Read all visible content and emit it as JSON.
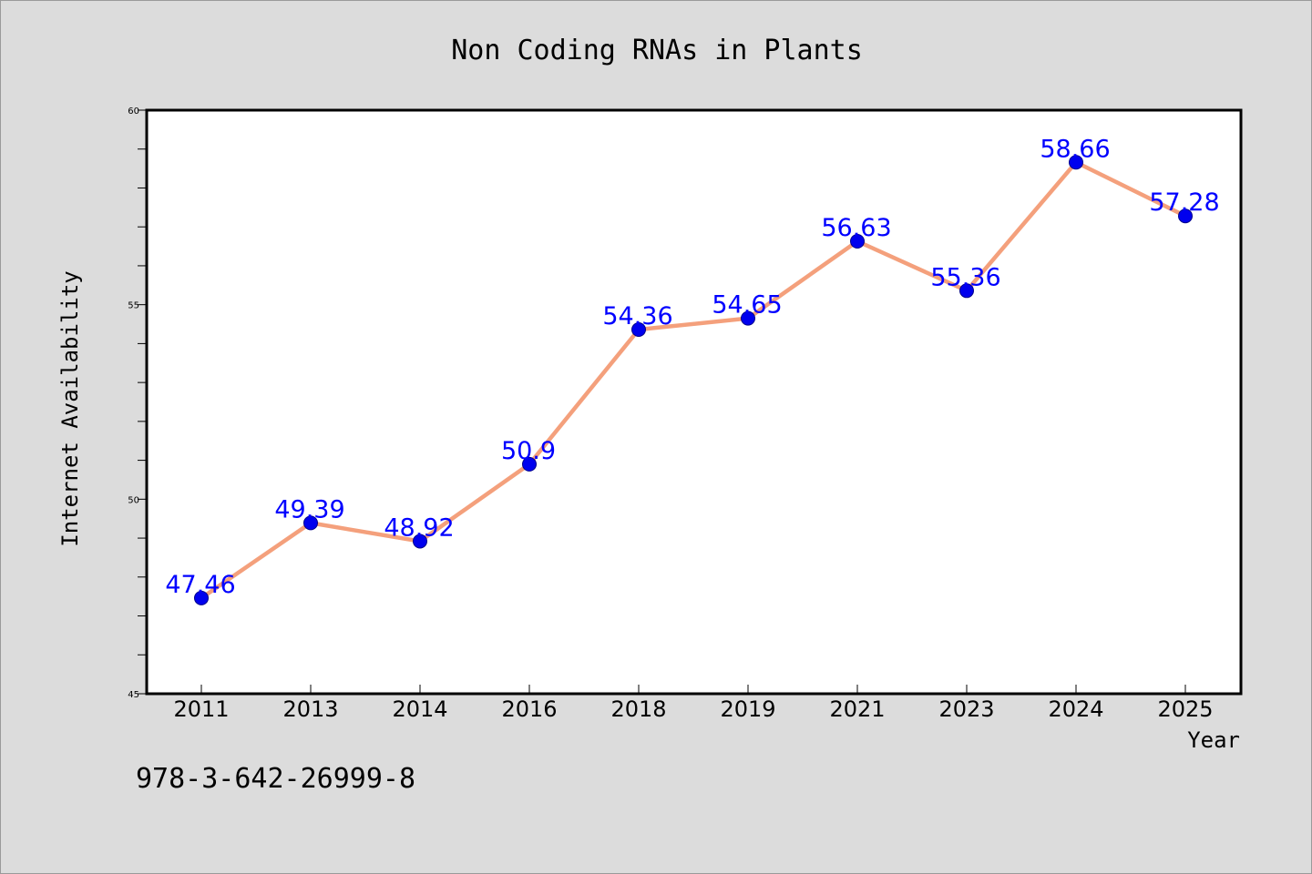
{
  "chart_data": {
    "type": "line",
    "title": "Non Coding RNAs in Plants",
    "xlabel": "Year",
    "ylabel": "Internet Availability",
    "categories": [
      "2011",
      "2013",
      "2014",
      "2016",
      "2018",
      "2019",
      "2021",
      "2023",
      "2024",
      "2025"
    ],
    "values": [
      47.46,
      49.39,
      48.92,
      50.9,
      54.36,
      54.65,
      56.63,
      55.36,
      58.66,
      57.28
    ],
    "data_labels": [
      "47.46",
      "49.39",
      "48.92",
      "50.9",
      "54.36",
      "54.65",
      "56.63",
      "55.36",
      "58.66",
      "57.28"
    ],
    "ylim": [
      45,
      60
    ],
    "y_major_ticks": [
      45,
      50,
      55,
      60
    ],
    "y_major_tick_labels": [
      "45",
      "50",
      "55",
      "60"
    ],
    "y_minor_step": 1,
    "grid": false,
    "line_color": "#f4a07c",
    "marker_color": "#0000ee",
    "label_color": "#0000ff",
    "background_color": "#dcdcdc",
    "plot_background": "#ffffff"
  },
  "footer": {
    "isbn": "978-3-642-26999-8"
  }
}
